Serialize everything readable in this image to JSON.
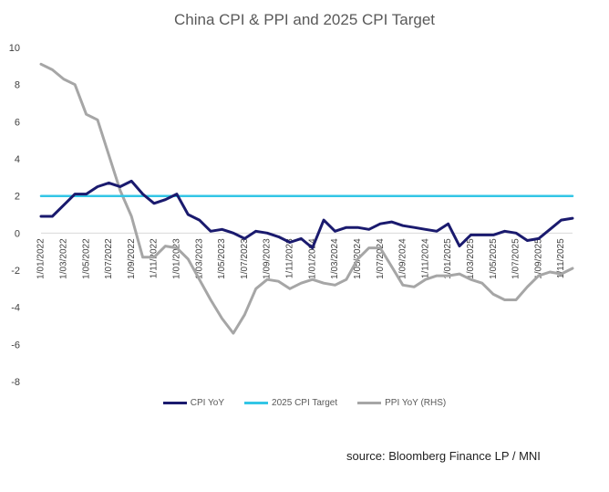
{
  "chart_data": {
    "type": "line",
    "title": "China CPI & PPI and 2025 CPI Target",
    "xlabel": "",
    "ylabel": "",
    "ylim": [
      -8,
      10
    ],
    "yticks": [
      10,
      8,
      6,
      4,
      2,
      0,
      -2,
      -4,
      -6,
      -8
    ],
    "grid": false,
    "legend_position": "bottom",
    "x_tick_labels": [
      "1/01/2022",
      "1/03/2022",
      "1/05/2022",
      "1/07/2022",
      "1/09/2022",
      "1/11/2022",
      "1/01/2023",
      "1/03/2023",
      "1/05/2023",
      "1/07/2023",
      "1/09/2023",
      "1/11/2023",
      "1/01/2024",
      "1/03/2024",
      "1/05/2024",
      "1/07/2024",
      "1/09/2024",
      "1/11/2024",
      "1/01/2025",
      "1/03/2025",
      "1/05/2025",
      "1/07/2025",
      "1/09/2025",
      "1/11/2025"
    ],
    "x_months": [
      "2022-01",
      "2022-02",
      "2022-03",
      "2022-04",
      "2022-05",
      "2022-06",
      "2022-07",
      "2022-08",
      "2022-09",
      "2022-10",
      "2022-11",
      "2022-12",
      "2023-01",
      "2023-02",
      "2023-03",
      "2023-04",
      "2023-05",
      "2023-06",
      "2023-07",
      "2023-08",
      "2023-09",
      "2023-10",
      "2023-11",
      "2023-12",
      "2024-01",
      "2024-02",
      "2024-03",
      "2024-04",
      "2024-05",
      "2024-06",
      "2024-07",
      "2024-08",
      "2024-09",
      "2024-10",
      "2024-11",
      "2024-12",
      "2025-01",
      "2025-02",
      "2025-03",
      "2025-04",
      "2025-05",
      "2025-06",
      "2025-07",
      "2025-08",
      "2025-09",
      "2025-10",
      "2025-11",
      "2025-12"
    ],
    "series": [
      {
        "name": "CPI YoY",
        "color": "#1a1a6e",
        "values": [
          0.9,
          0.9,
          1.5,
          2.1,
          2.1,
          2.5,
          2.7,
          2.5,
          2.8,
          2.1,
          1.6,
          1.8,
          2.1,
          1.0,
          0.7,
          0.1,
          0.2,
          0.0,
          -0.3,
          0.1,
          0.0,
          -0.2,
          -0.5,
          -0.3,
          -0.8,
          0.7,
          0.1,
          0.3,
          0.3,
          0.2,
          0.5,
          0.6,
          0.4,
          0.3,
          0.2,
          0.1,
          0.5,
          -0.7,
          -0.1,
          -0.1,
          -0.1,
          0.1,
          0.0,
          -0.4,
          -0.3,
          0.2,
          0.7,
          0.8
        ]
      },
      {
        "name": "2025 CPI Target",
        "color": "#33c6e6",
        "values": [
          2,
          2,
          2,
          2,
          2,
          2,
          2,
          2,
          2,
          2,
          2,
          2,
          2,
          2,
          2,
          2,
          2,
          2,
          2,
          2,
          2,
          2,
          2,
          2,
          2,
          2,
          2,
          2,
          2,
          2,
          2,
          2,
          2,
          2,
          2,
          2,
          2,
          2,
          2,
          2,
          2,
          2,
          2,
          2,
          2,
          2,
          2,
          2
        ]
      },
      {
        "name": "PPI YoY (RHS)",
        "color": "#a6a6a6",
        "values": [
          9.1,
          8.8,
          8.3,
          8.0,
          6.4,
          6.1,
          4.2,
          2.3,
          0.9,
          -1.3,
          -1.3,
          -0.7,
          -0.8,
          -1.4,
          -2.5,
          -3.6,
          -4.6,
          -5.4,
          -4.4,
          -3.0,
          -2.5,
          -2.6,
          -3.0,
          -2.7,
          -2.5,
          -2.7,
          -2.8,
          -2.5,
          -1.4,
          -0.8,
          -0.8,
          -1.8,
          -2.8,
          -2.9,
          -2.5,
          -2.3,
          -2.3,
          -2.2,
          -2.5,
          -2.7,
          -3.3,
          -3.6,
          -3.6,
          -2.9,
          -2.3,
          -2.1,
          -2.2,
          -1.9
        ]
      }
    ]
  },
  "legend": [
    {
      "label": "CPI YoY",
      "color": "#1a1a6e"
    },
    {
      "label": "2025 CPI Target",
      "color": "#33c6e6"
    },
    {
      "label": "PPI YoY (RHS)",
      "color": "#a6a6a6"
    }
  ],
  "source_note": "source: Bloomberg Finance LP / MNI"
}
